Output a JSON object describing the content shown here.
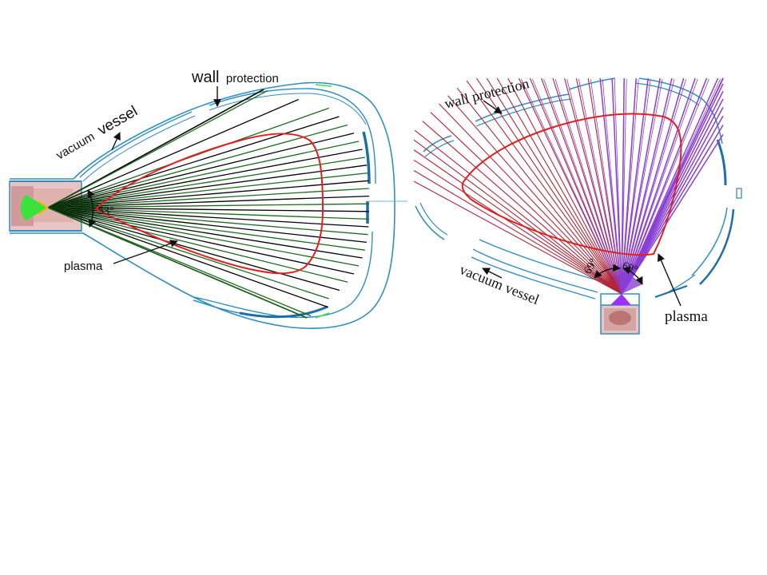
{
  "left_diagram": {
    "label_wall_big": "wall",
    "label_wall_small": "protection",
    "label_vessel_small": "vacuum",
    "label_vessel_big": "vessel",
    "label_plasma": "plasma",
    "angle_label": "53°",
    "chord_count": 40
  },
  "right_diagram": {
    "label_wall": "wall protection",
    "label_vessel": "vacuum vessel",
    "label_plasma": "plasma",
    "angle_left": "69°",
    "angle_right": "69°",
    "chord_count": 46
  },
  "colors": {
    "vessel": "#2f8ec2",
    "vessel_dark": "#1e6ea8",
    "plasma": "#e02020",
    "green_chord": "#1c6b1c",
    "black_chord": "#000000",
    "red_chord": "#b0263a",
    "violet_chord": "#8a3fd4",
    "camera_green": "#3ce23c",
    "camera_violet": "#9b30ff",
    "port": "#dca0a0"
  }
}
